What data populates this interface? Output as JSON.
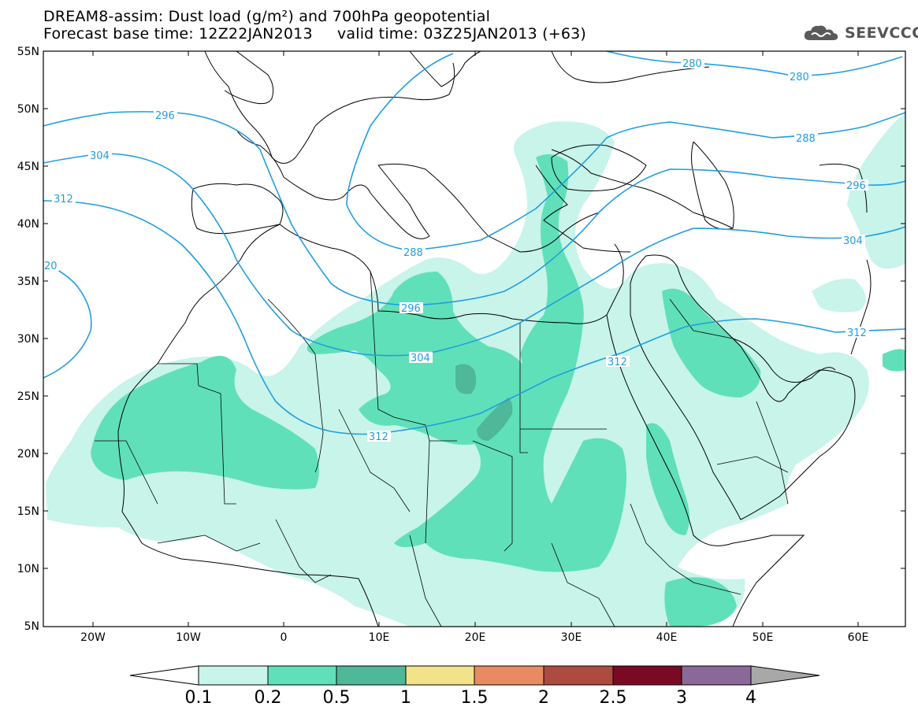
{
  "title": {
    "line1": "DREAM8-assim: Dust load (g/m²) and 700hPa geopotential",
    "line2": "Forecast base time: 12Z22JAN2013     valid time: 03Z25JAN2013 (+63)"
  },
  "logo": {
    "text": "SEEVCCC",
    "icon": "cloud-icon"
  },
  "axes": {
    "lat_labels": [
      "55N",
      "50N",
      "45N",
      "40N",
      "35N",
      "30N",
      "25N",
      "20N",
      "15N",
      "10N",
      "5N"
    ],
    "lon_labels": [
      "20W",
      "10W",
      "0",
      "10E",
      "20E",
      "30E",
      "40E",
      "50E",
      "60E"
    ]
  },
  "contours": {
    "color": "#1f9ee0",
    "labels": [
      "280",
      "280",
      "288",
      "288",
      "296",
      "296",
      "296",
      "304",
      "304",
      "304",
      "312",
      "312",
      "312",
      "312",
      "20"
    ]
  },
  "colorbar": {
    "ticks": [
      "0.1",
      "0.2",
      "0.5",
      "1",
      "1.5",
      "2",
      "2.5",
      "3",
      "4"
    ],
    "colors": [
      "#c8f4ea",
      "#60e0b8",
      "#4fb898",
      "#f2e38a",
      "#e98a62",
      "#ad4b40",
      "#7a0a24",
      "#8a689a",
      "#a8a8a8"
    ]
  }
}
